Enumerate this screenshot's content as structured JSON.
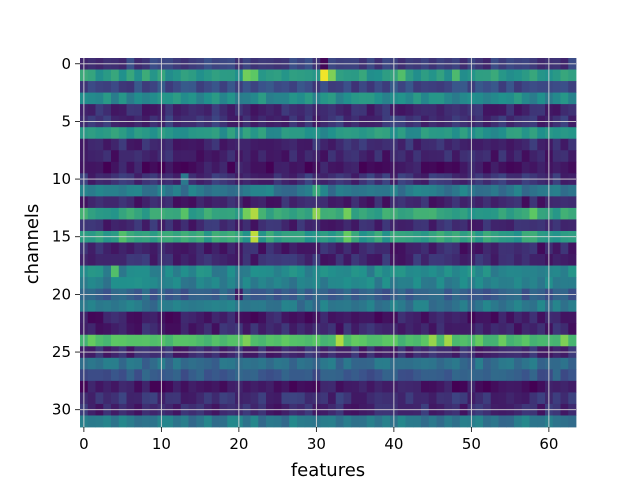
{
  "chart_data": {
    "type": "heatmap",
    "title": "",
    "xlabel": "features",
    "ylabel": "channels",
    "xlim": [
      -0.5,
      63.5
    ],
    "ylim": [
      31.5,
      -0.5
    ],
    "x_ticks": [
      0,
      10,
      20,
      30,
      40,
      50,
      60
    ],
    "y_ticks": [
      0,
      5,
      10,
      15,
      20,
      25,
      30
    ],
    "grid": true,
    "colormap": "viridis",
    "vmin": 0,
    "vmax": 1,
    "n_rows": 32,
    "n_cols": 64,
    "row_means": [
      0.18,
      0.55,
      0.22,
      0.48,
      0.12,
      0.14,
      0.52,
      0.12,
      0.1,
      0.06,
      0.14,
      0.4,
      0.1,
      0.58,
      0.12,
      0.56,
      0.1,
      0.12,
      0.46,
      0.44,
      0.3,
      0.4,
      0.08,
      0.1,
      0.7,
      0.12,
      0.36,
      0.28,
      0.06,
      0.14,
      0.12,
      0.4
    ],
    "hotspots": [
      {
        "row": 1,
        "col": 31,
        "value": 0.98
      },
      {
        "row": 1,
        "col": 32,
        "value": 0.8
      },
      {
        "row": 1,
        "col": 21,
        "value": 0.78
      },
      {
        "row": 1,
        "col": 22,
        "value": 0.74
      },
      {
        "row": 1,
        "col": 41,
        "value": 0.7
      },
      {
        "row": 1,
        "col": 48,
        "value": 0.68
      },
      {
        "row": 13,
        "col": 22,
        "value": 0.88
      },
      {
        "row": 13,
        "col": 21,
        "value": 0.78
      },
      {
        "row": 13,
        "col": 30,
        "value": 0.82
      },
      {
        "row": 13,
        "col": 34,
        "value": 0.78
      },
      {
        "row": 13,
        "col": 13,
        "value": 0.72
      },
      {
        "row": 13,
        "col": 58,
        "value": 0.74
      },
      {
        "row": 15,
        "col": 22,
        "value": 0.9
      },
      {
        "row": 15,
        "col": 34,
        "value": 0.76
      },
      {
        "row": 15,
        "col": 5,
        "value": 0.7
      },
      {
        "row": 18,
        "col": 4,
        "value": 0.7
      },
      {
        "row": 24,
        "col": 33,
        "value": 0.88
      },
      {
        "row": 24,
        "col": 21,
        "value": 0.8
      },
      {
        "row": 24,
        "col": 45,
        "value": 0.84
      },
      {
        "row": 24,
        "col": 47,
        "value": 0.86
      },
      {
        "row": 24,
        "col": 62,
        "value": 0.8
      },
      {
        "row": 11,
        "col": 30,
        "value": 0.6
      }
    ],
    "dark_spots": [
      {
        "row": 0,
        "col": 31,
        "value": 0.02
      },
      {
        "row": 10,
        "col": 13,
        "value": 0.4
      },
      {
        "row": 20,
        "col": 20,
        "value": 0.08
      }
    ]
  },
  "colors": {
    "background": "#ffffff",
    "grid": "#d9d9d9",
    "text": "#000000",
    "viridis_low": "#440154",
    "viridis_high": "#fde725"
  }
}
